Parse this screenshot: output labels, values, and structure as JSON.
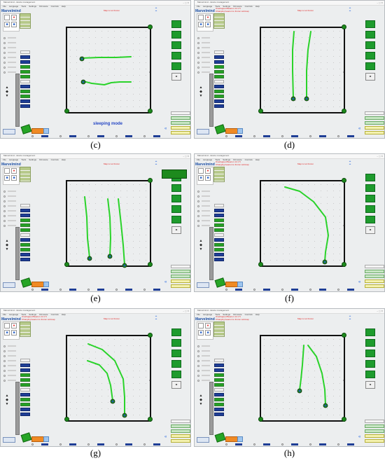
{
  "app": {
    "window_title": "Marvelmind - device management",
    "brand": "Marvelmind",
    "menu": [
      "File",
      "Language",
      "Tools",
      "Settings",
      "Firmware",
      "Controls",
      "Help"
    ],
    "map_info": "Map is not frozen"
  },
  "colors": {
    "track": "#2ad32a",
    "wall": "#111111",
    "beacon_green": "#1d8a1d",
    "mobile_blue": "#1f55b5",
    "status_red": "#e02020",
    "sleep_blue": "#2546c4",
    "nav_button": "#1f3e96",
    "action_button": "#24a024",
    "orange_button": "#f08a24"
  },
  "icons": [
    "shield-icon",
    "hedgehog-icon",
    "modem-icon",
    "double-chevron-up-icon",
    "double-chevron-left-icon",
    "joystick-icon"
  ],
  "panels": [
    {
      "id": "c",
      "caption": "(c)",
      "status_lines": [],
      "sleeping_label": "sleeping mode",
      "tracks": [
        {
          "points": [
            [
              116,
              82
            ],
            [
              140,
              81
            ],
            [
              165,
              81
            ],
            [
              186,
              80
            ]
          ]
        },
        {
          "points": [
            [
              118,
              115
            ],
            [
              130,
              118
            ],
            [
              148,
              120
            ],
            [
              158,
              117
            ],
            [
              170,
              116
            ],
            [
              186,
              116
            ]
          ]
        }
      ],
      "mobiles": [
        [
          116,
          83
        ],
        [
          118,
          116
        ]
      ]
    },
    {
      "id": "d",
      "caption": "(d)",
      "status_lines": [
        "Overlapped Beacon 14 1 5",
        "Changing beacon to frozen submap"
      ],
      "sleeping_label": "",
      "tracks": [
        {
          "points": [
            [
              142,
              44
            ],
            [
              140,
              70
            ],
            [
              140,
              100
            ],
            [
              141,
              139
            ]
          ]
        },
        {
          "points": [
            [
              166,
              44
            ],
            [
              162,
              70
            ],
            [
              160,
              100
            ],
            [
              160,
              139
            ]
          ]
        }
      ],
      "mobiles": [
        [
          141,
          140
        ],
        [
          160,
          140
        ]
      ]
    },
    {
      "id": "e",
      "caption": "(e)",
      "status_lines": [],
      "sleeping_label": "",
      "tracks": [
        {
          "points": [
            [
              120,
              61
            ],
            [
              123,
              90
            ],
            [
              124,
              120
            ],
            [
              127,
              148
            ]
          ]
        },
        {
          "points": [
            [
              153,
              64
            ],
            [
              156,
              90
            ],
            [
              157,
              120
            ],
            [
              156,
              145
            ]
          ]
        },
        {
          "points": [
            [
              168,
              64
            ],
            [
              172,
              100
            ],
            [
              175,
              130
            ],
            [
              177,
              158
            ]
          ]
        }
      ],
      "mobiles": [
        [
          127,
          149
        ],
        [
          156,
          146
        ],
        [
          177,
          159
        ]
      ]
    },
    {
      "id": "f",
      "caption": "(f)",
      "status_lines": [
        "Overlapped Beacon 14 1 5",
        "Changing beacon to frozen submap"
      ],
      "sleeping_label": "",
      "tracks": [
        {
          "points": [
            [
              129,
              47
            ],
            [
              150,
              53
            ],
            [
              170,
              68
            ],
            [
              187,
              90
            ],
            [
              191,
              116
            ],
            [
              187,
              140
            ],
            [
              186,
              153
            ]
          ]
        }
      ],
      "mobiles": [
        [
          186,
          154
        ]
      ]
    },
    {
      "id": "g",
      "caption": "(g)",
      "status_lines": [
        "Overlapped Beacon 14 1 5",
        "Changing beacon to frozen submap"
      ],
      "sleeping_label": "",
      "tracks": [
        {
          "points": [
            [
              125,
              50
            ],
            [
              145,
              58
            ],
            [
              163,
              74
            ],
            [
              175,
              100
            ],
            [
              177,
              126
            ],
            [
              177,
              151
            ]
          ]
        },
        {
          "points": [
            [
              124,
              74
            ],
            [
              141,
              80
            ],
            [
              152,
              92
            ],
            [
              157,
              109
            ],
            [
              160,
              131
            ]
          ]
        }
      ],
      "mobiles": [
        [
          160,
          132
        ],
        [
          177,
          152
        ]
      ]
    },
    {
      "id": "h",
      "caption": "(h)",
      "status_lines": [
        "Overlapped Beacon 14 1 5",
        "Changing beacon to frozen submap"
      ],
      "sleeping_label": "",
      "tracks": [
        {
          "points": [
            [
              156,
              52
            ],
            [
              154,
              80
            ],
            [
              152,
              100
            ],
            [
              150,
              116
            ]
          ]
        },
        {
          "points": [
            [
              162,
              52
            ],
            [
              174,
              68
            ],
            [
              182,
              92
            ],
            [
              186,
              115
            ],
            [
              187,
              137
            ]
          ]
        }
      ],
      "mobiles": [
        [
          150,
          117
        ],
        [
          187,
          138
        ]
      ]
    }
  ]
}
